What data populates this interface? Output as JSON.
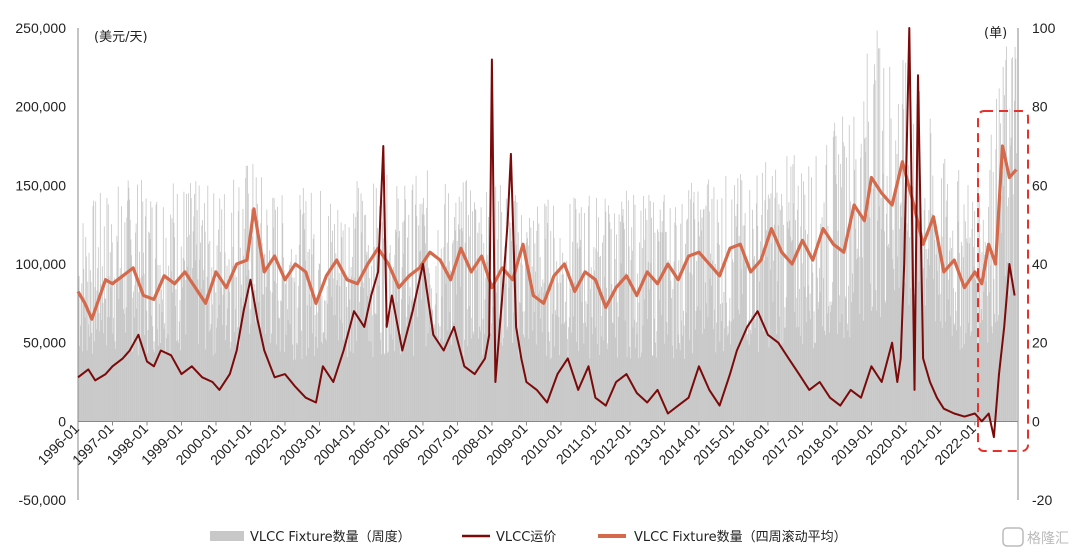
{
  "chart_data": {
    "type": "line",
    "title": "",
    "left_unit": "(美元/天)",
    "right_unit": "(单)",
    "left_axis": {
      "min": -50000,
      "max": 250000,
      "ticks": [
        -50000,
        0,
        50000,
        100000,
        150000,
        200000,
        250000
      ],
      "tick_labels": [
        "-50,000",
        "0",
        "50,000",
        "100,000",
        "150,000",
        "200,000",
        "250,000"
      ]
    },
    "right_axis": {
      "min": -20,
      "max": 100,
      "ticks": [
        -20,
        0,
        20,
        40,
        60,
        80,
        100
      ],
      "tick_labels": [
        "-20",
        "0",
        "20",
        "40",
        "60",
        "80",
        "100"
      ]
    },
    "x_tick_labels": [
      "1996-01",
      "1997-01",
      "1998-01",
      "1999-01",
      "2000-01",
      "2001-01",
      "2002-01",
      "2003-01",
      "2004-01",
      "2005-01",
      "2006-01",
      "2007-01",
      "2008-01",
      "2009-01",
      "2010-01",
      "2011-01",
      "2012-01",
      "2013-01",
      "2014-01",
      "2015-01",
      "2016-01",
      "2017-01",
      "2018-01",
      "2019-01",
      "2020-01",
      "2021-01",
      "2022-01"
    ],
    "x_range": [
      1996.0,
      2023.25
    ],
    "grid": false,
    "legend_position": "bottom",
    "legend": [
      "VLCC Fixture数量（周度）",
      "VLCC运价",
      "VLCC Fixture数量（四周滚动平均）"
    ],
    "series": [
      {
        "name": "VLCC Fixture数量（周度）",
        "axis": "right",
        "style": "bars",
        "color": "#c8c8c8",
        "x": [
          1996.0,
          1996.5,
          1997.0,
          1997.5,
          1998.0,
          1998.5,
          1999.0,
          1999.5,
          2000.0,
          2000.5,
          2001.0,
          2001.5,
          2002.0,
          2002.5,
          2003.0,
          2003.5,
          2004.0,
          2004.5,
          2005.0,
          2005.5,
          2006.0,
          2006.5,
          2007.0,
          2007.5,
          2008.0,
          2008.5,
          2009.0,
          2009.5,
          2010.0,
          2010.5,
          2011.0,
          2011.5,
          2012.0,
          2012.5,
          2013.0,
          2013.5,
          2014.0,
          2014.5,
          2015.0,
          2015.5,
          2016.0,
          2016.5,
          2017.0,
          2017.5,
          2018.0,
          2018.5,
          2019.0,
          2019.5,
          2020.0,
          2020.5,
          2021.0,
          2021.5,
          2022.0,
          2022.5,
          2023.0
        ],
        "y": [
          32,
          34,
          36,
          37,
          36,
          38,
          37,
          36,
          35,
          39,
          40,
          36,
          34,
          35,
          36,
          35,
          37,
          36,
          37,
          36,
          38,
          37,
          36,
          37,
          37,
          35,
          34,
          34,
          33,
          34,
          35,
          34,
          35,
          34,
          35,
          34,
          38,
          38,
          37,
          38,
          40,
          40,
          41,
          40,
          46,
          48,
          60,
          57,
          54,
          49,
          40,
          38,
          37,
          46,
          60
        ]
      },
      {
        "name": "VLCC运价",
        "axis": "left",
        "style": "line",
        "color": "#7b0a0a",
        "x": [
          1996.0,
          1996.3,
          1996.5,
          1996.8,
          1997.0,
          1997.3,
          1997.5,
          1997.75,
          1998.0,
          1998.2,
          1998.4,
          1998.7,
          1999.0,
          1999.3,
          1999.6,
          1999.9,
          2000.1,
          2000.4,
          2000.6,
          2000.8,
          2001.0,
          2001.2,
          2001.4,
          2001.7,
          2002.0,
          2002.3,
          2002.6,
          2002.9,
          2003.1,
          2003.4,
          2003.7,
          2004.0,
          2004.3,
          2004.5,
          2004.7,
          2004.85,
          2004.95,
          2005.1,
          2005.4,
          2005.7,
          2006.0,
          2006.3,
          2006.6,
          2006.9,
          2007.2,
          2007.5,
          2007.8,
          2007.92,
          2008.0,
          2008.1,
          2008.3,
          2008.45,
          2008.55,
          2008.7,
          2008.85,
          2009.0,
          2009.3,
          2009.6,
          2009.9,
          2010.2,
          2010.5,
          2010.8,
          2011.0,
          2011.3,
          2011.6,
          2011.9,
          2012.2,
          2012.5,
          2012.8,
          2013.1,
          2013.4,
          2013.7,
          2014.0,
          2014.3,
          2014.6,
          2014.9,
          2015.1,
          2015.4,
          2015.7,
          2016.0,
          2016.3,
          2016.6,
          2016.9,
          2017.2,
          2017.5,
          2017.8,
          2018.1,
          2018.4,
          2018.7,
          2019.0,
          2019.3,
          2019.6,
          2019.75,
          2019.85,
          2019.95,
          2020.1,
          2020.25,
          2020.35,
          2020.5,
          2020.7,
          2020.9,
          2021.1,
          2021.4,
          2021.7,
          2022.0,
          2022.2,
          2022.4,
          2022.55,
          2022.7,
          2022.85,
          2023.0,
          2023.15
        ],
        "y": [
          28000,
          33000,
          26000,
          30000,
          35000,
          40000,
          45000,
          55000,
          38000,
          35000,
          45000,
          42000,
          30000,
          35000,
          28000,
          25000,
          20000,
          30000,
          45000,
          70000,
          90000,
          65000,
          45000,
          28000,
          30000,
          22000,
          15000,
          12000,
          35000,
          25000,
          45000,
          70000,
          60000,
          80000,
          95000,
          175000,
          60000,
          80000,
          45000,
          70000,
          100000,
          55000,
          45000,
          60000,
          35000,
          30000,
          40000,
          55000,
          230000,
          25000,
          80000,
          125000,
          170000,
          60000,
          40000,
          25000,
          20000,
          12000,
          30000,
          40000,
          20000,
          35000,
          15000,
          10000,
          25000,
          30000,
          18000,
          12000,
          20000,
          5000,
          10000,
          15000,
          35000,
          20000,
          10000,
          30000,
          45000,
          60000,
          70000,
          55000,
          50000,
          40000,
          30000,
          20000,
          25000,
          15000,
          10000,
          20000,
          15000,
          35000,
          25000,
          50000,
          25000,
          40000,
          100000,
          250000,
          20000,
          220000,
          40000,
          25000,
          15000,
          8000,
          5000,
          3000,
          5000,
          0,
          5000,
          -10000,
          30000,
          60000,
          100000,
          80000
        ]
      },
      {
        "name": "VLCC Fixture数量（四周滚动平均）",
        "axis": "right",
        "style": "line",
        "color": "#d4694b",
        "x": [
          1996.0,
          1996.2,
          1996.4,
          1996.6,
          1996.8,
          1997.0,
          1997.3,
          1997.6,
          1997.9,
          1998.2,
          1998.5,
          1998.8,
          1999.1,
          1999.4,
          1999.7,
          2000.0,
          2000.3,
          2000.6,
          2000.9,
          2001.1,
          2001.4,
          2001.7,
          2002.0,
          2002.3,
          2002.6,
          2002.9,
          2003.2,
          2003.5,
          2003.8,
          2004.1,
          2004.4,
          2004.7,
          2005.0,
          2005.3,
          2005.6,
          2005.9,
          2006.2,
          2006.5,
          2006.8,
          2007.1,
          2007.4,
          2007.7,
          2008.0,
          2008.3,
          2008.6,
          2008.9,
          2009.2,
          2009.5,
          2009.8,
          2010.1,
          2010.4,
          2010.7,
          2011.0,
          2011.3,
          2011.6,
          2011.9,
          2012.2,
          2012.5,
          2012.8,
          2013.1,
          2013.4,
          2013.7,
          2014.0,
          2014.3,
          2014.6,
          2014.9,
          2015.2,
          2015.5,
          2015.8,
          2016.1,
          2016.4,
          2016.7,
          2017.0,
          2017.3,
          2017.6,
          2017.9,
          2018.2,
          2018.5,
          2018.8,
          2019.0,
          2019.3,
          2019.6,
          2019.9,
          2020.2,
          2020.5,
          2020.8,
          2021.1,
          2021.4,
          2021.7,
          2022.0,
          2022.2,
          2022.4,
          2022.6,
          2022.8,
          2023.0,
          2023.2
        ],
        "y": [
          33,
          30,
          26,
          31,
          36,
          35,
          37,
          39,
          32,
          31,
          37,
          35,
          38,
          34,
          30,
          38,
          34,
          40,
          41,
          54,
          38,
          42,
          36,
          40,
          38,
          30,
          37,
          41,
          36,
          35,
          40,
          44,
          40,
          34,
          37,
          39,
          43,
          41,
          36,
          44,
          38,
          42,
          34,
          39,
          36,
          45,
          32,
          30,
          37,
          40,
          33,
          38,
          36,
          29,
          34,
          37,
          32,
          38,
          35,
          40,
          36,
          42,
          43,
          40,
          37,
          44,
          45,
          38,
          41,
          49,
          43,
          40,
          46,
          41,
          49,
          45,
          43,
          55,
          51,
          62,
          58,
          55,
          66,
          56,
          45,
          52,
          38,
          41,
          34,
          38,
          35,
          45,
          40,
          70,
          62,
          64
        ]
      }
    ]
  },
  "legend_labels": {
    "bars": "VLCC Fixture数量（周度）",
    "rate": "VLCC运价",
    "avg": "VLCC Fixture数量（四周滚动平均）"
  },
  "colors": {
    "bars": "#c8c8c8",
    "rate": "#7b0a0a",
    "avg": "#d4694b",
    "highlight": "#e8312a"
  },
  "watermark": "格隆汇"
}
